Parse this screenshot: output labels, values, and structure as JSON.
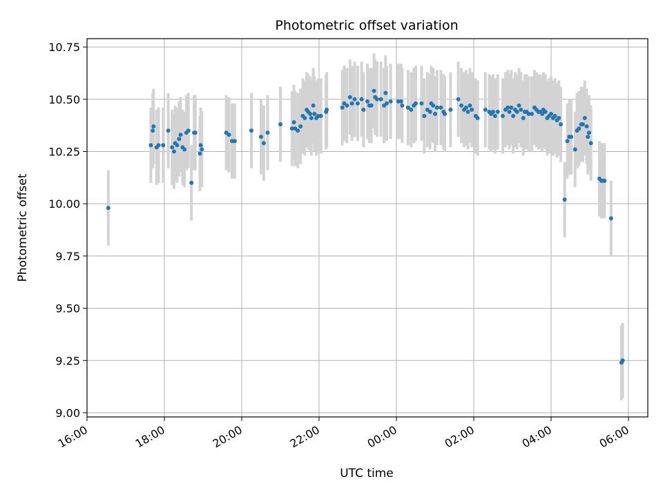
{
  "chart_data": {
    "type": "scatter",
    "title": "Photometric offset variation",
    "xlabel": "UTC time",
    "ylabel": "Photometric offset",
    "xlim_hours": [
      16.0,
      30.5
    ],
    "ylim": [
      8.98,
      10.79
    ],
    "x_ticks": [
      {
        "label": "16:00",
        "h": 16
      },
      {
        "label": "18:00",
        "h": 18
      },
      {
        "label": "20:00",
        "h": 20
      },
      {
        "label": "22:00",
        "h": 22
      },
      {
        "label": "00:00",
        "h": 24
      },
      {
        "label": "02:00",
        "h": 26
      },
      {
        "label": "04:00",
        "h": 28
      },
      {
        "label": "06:00",
        "h": 30
      }
    ],
    "y_ticks": [
      {
        "label": "9.00",
        "v": 9.0
      },
      {
        "label": "9.25",
        "v": 9.25
      },
      {
        "label": "9.50",
        "v": 9.5
      },
      {
        "label": "9.75",
        "v": 9.75
      },
      {
        "label": "10.00",
        "v": 10.0
      },
      {
        "label": "10.25",
        "v": 10.25
      },
      {
        "label": "10.50",
        "v": 10.5
      },
      {
        "label": "10.75",
        "v": 10.75
      }
    ],
    "grid": true,
    "point_color": "#1f77b4",
    "errorbar_color": "#d3d3d3",
    "error_half_width": 0.18,
    "points": [
      [
        16.55,
        9.98
      ],
      [
        17.65,
        10.28
      ],
      [
        17.7,
        10.35
      ],
      [
        17.72,
        10.37
      ],
      [
        17.8,
        10.27
      ],
      [
        17.85,
        10.28
      ],
      [
        17.97,
        10.28
      ],
      [
        18.1,
        10.35
      ],
      [
        18.2,
        10.27
      ],
      [
        18.25,
        10.25
      ],
      [
        18.28,
        10.29
      ],
      [
        18.33,
        10.28
      ],
      [
        18.38,
        10.31
      ],
      [
        18.42,
        10.33
      ],
      [
        18.47,
        10.27
      ],
      [
        18.52,
        10.26
      ],
      [
        18.57,
        10.34
      ],
      [
        18.62,
        10.35
      ],
      [
        18.7,
        10.1
      ],
      [
        18.77,
        10.34
      ],
      [
        18.8,
        10.34
      ],
      [
        18.92,
        10.24
      ],
      [
        18.94,
        10.28
      ],
      [
        18.97,
        10.26
      ],
      [
        19.6,
        10.34
      ],
      [
        19.67,
        10.33
      ],
      [
        19.75,
        10.3
      ],
      [
        19.82,
        10.3
      ],
      [
        20.25,
        10.35
      ],
      [
        20.5,
        10.32
      ],
      [
        20.57,
        10.29
      ],
      [
        20.67,
        10.34
      ],
      [
        21.0,
        10.38
      ],
      [
        21.3,
        10.36
      ],
      [
        21.35,
        10.39
      ],
      [
        21.38,
        10.36
      ],
      [
        21.45,
        10.35
      ],
      [
        21.52,
        10.37
      ],
      [
        21.58,
        10.42
      ],
      [
        21.63,
        10.41
      ],
      [
        21.68,
        10.45
      ],
      [
        21.72,
        10.44
      ],
      [
        21.77,
        10.43
      ],
      [
        21.8,
        10.41
      ],
      [
        21.85,
        10.47
      ],
      [
        21.88,
        10.43
      ],
      [
        21.93,
        10.41
      ],
      [
        21.98,
        10.42
      ],
      [
        22.05,
        10.42
      ],
      [
        22.18,
        10.44
      ],
      [
        22.2,
        10.45
      ],
      [
        22.6,
        10.46
      ],
      [
        22.65,
        10.48
      ],
      [
        22.72,
        10.47
      ],
      [
        22.8,
        10.51
      ],
      [
        22.85,
        10.48
      ],
      [
        22.92,
        10.5
      ],
      [
        23.0,
        10.48
      ],
      [
        23.1,
        10.5
      ],
      [
        23.15,
        10.45
      ],
      [
        23.25,
        10.49
      ],
      [
        23.3,
        10.47
      ],
      [
        23.35,
        10.47
      ],
      [
        23.42,
        10.54
      ],
      [
        23.45,
        10.51
      ],
      [
        23.5,
        10.5
      ],
      [
        23.6,
        10.5
      ],
      [
        23.68,
        10.47
      ],
      [
        23.72,
        10.53
      ],
      [
        23.75,
        10.48
      ],
      [
        23.85,
        10.49
      ],
      [
        24.05,
        10.49
      ],
      [
        24.12,
        10.49
      ],
      [
        24.15,
        10.47
      ],
      [
        24.3,
        10.46
      ],
      [
        24.38,
        10.45
      ],
      [
        24.45,
        10.47
      ],
      [
        24.5,
        10.48
      ],
      [
        24.65,
        10.48
      ],
      [
        24.72,
        10.42
      ],
      [
        24.8,
        10.45
      ],
      [
        24.87,
        10.44
      ],
      [
        24.9,
        10.48
      ],
      [
        24.95,
        10.47
      ],
      [
        25.0,
        10.43
      ],
      [
        25.05,
        10.46
      ],
      [
        25.15,
        10.46
      ],
      [
        25.22,
        10.44
      ],
      [
        25.25,
        10.43
      ],
      [
        25.4,
        10.45
      ],
      [
        25.6,
        10.5
      ],
      [
        25.68,
        10.47
      ],
      [
        25.75,
        10.45
      ],
      [
        25.8,
        10.46
      ],
      [
        25.85,
        10.44
      ],
      [
        25.9,
        10.47
      ],
      [
        25.95,
        10.45
      ],
      [
        26.05,
        10.42
      ],
      [
        26.1,
        10.41
      ],
      [
        26.3,
        10.45
      ],
      [
        26.4,
        10.44
      ],
      [
        26.45,
        10.43
      ],
      [
        26.5,
        10.44
      ],
      [
        26.55,
        10.42
      ],
      [
        26.62,
        10.44
      ],
      [
        26.75,
        10.42
      ],
      [
        26.82,
        10.45
      ],
      [
        26.88,
        10.46
      ],
      [
        26.92,
        10.44
      ],
      [
        26.97,
        10.46
      ],
      [
        27.02,
        10.42
      ],
      [
        27.07,
        10.45
      ],
      [
        27.12,
        10.44
      ],
      [
        27.17,
        10.47
      ],
      [
        27.22,
        10.45
      ],
      [
        27.28,
        10.41
      ],
      [
        27.32,
        10.44
      ],
      [
        27.37,
        10.44
      ],
      [
        27.42,
        10.43
      ],
      [
        27.5,
        10.43
      ],
      [
        27.57,
        10.46
      ],
      [
        27.62,
        10.45
      ],
      [
        27.67,
        10.44
      ],
      [
        27.72,
        10.44
      ],
      [
        27.77,
        10.43
      ],
      [
        27.8,
        10.45
      ],
      [
        27.85,
        10.44
      ],
      [
        27.9,
        10.41
      ],
      [
        27.95,
        10.42
      ],
      [
        28.0,
        10.43
      ],
      [
        28.05,
        10.41
      ],
      [
        28.1,
        10.42
      ],
      [
        28.15,
        10.4
      ],
      [
        28.2,
        10.41
      ],
      [
        28.25,
        10.38
      ],
      [
        28.35,
        10.02
      ],
      [
        28.42,
        10.3
      ],
      [
        28.47,
        10.32
      ],
      [
        28.52,
        10.32
      ],
      [
        28.62,
        10.26
      ],
      [
        28.67,
        10.35
      ],
      [
        28.72,
        10.36
      ],
      [
        28.78,
        10.38
      ],
      [
        28.82,
        10.38
      ],
      [
        28.87,
        10.41
      ],
      [
        28.92,
        10.37
      ],
      [
        28.95,
        10.32
      ],
      [
        28.98,
        10.34
      ],
      [
        29.03,
        10.29
      ],
      [
        29.25,
        10.12
      ],
      [
        29.3,
        10.11
      ],
      [
        29.35,
        10.11
      ],
      [
        29.38,
        10.11
      ],
      [
        29.55,
        9.93
      ],
      [
        29.82,
        9.24
      ],
      [
        29.85,
        9.25
      ]
    ]
  }
}
